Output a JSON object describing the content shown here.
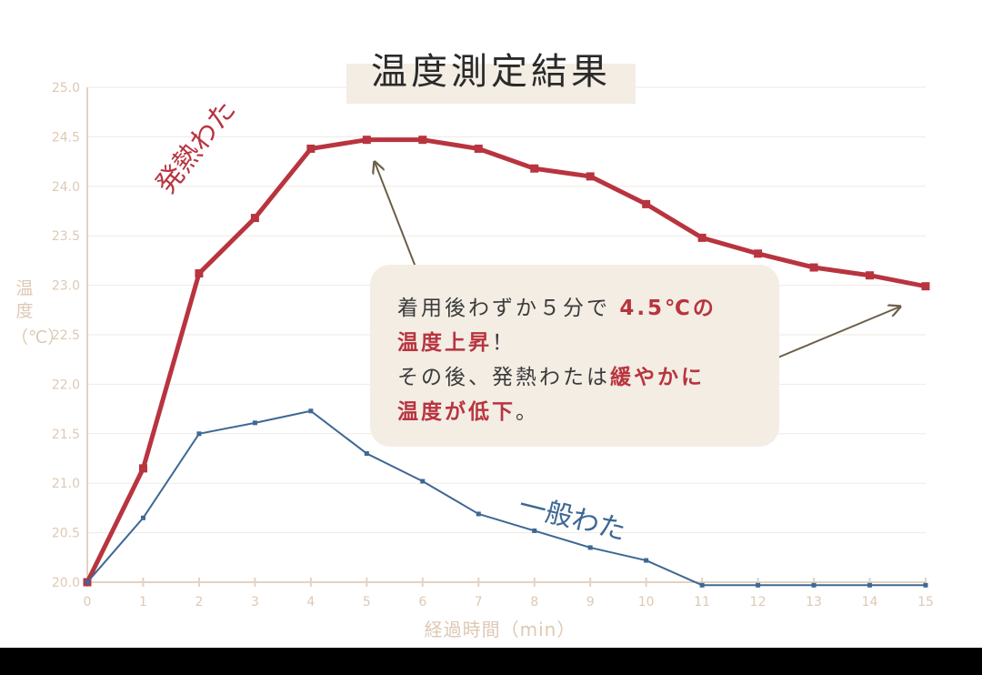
{
  "title": "温度測定結果",
  "y_axis": {
    "label": "温度",
    "unit": "（℃）"
  },
  "x_axis": {
    "label": "経過時間（min）"
  },
  "annotation": {
    "line1a": "着用後わずか５分で ",
    "line1b": "4.5℃の",
    "line2a": "温度上昇",
    "line2b": "！",
    "line3a": "その後、発熱わたは",
    "line3b": "緩やかに",
    "line4a": "温度が低下",
    "line4b": "。"
  },
  "colors": {
    "series_a": "#b8343f",
    "series_b": "#3d6894",
    "axis": "#e3d2c2",
    "tick_text": "#ddc9b4",
    "grid": "#efe9e2",
    "callout_bg": "#f3ede4",
    "arrow": "#6b5f4a"
  },
  "chart_data": {
    "type": "line",
    "title": "温度測定結果",
    "xlabel": "経過時間（min）",
    "ylabel": "温度（℃）",
    "x": [
      0,
      1,
      2,
      3,
      4,
      5,
      6,
      7,
      8,
      9,
      10,
      11,
      12,
      13,
      14,
      15
    ],
    "xlim": [
      0,
      15
    ],
    "ylim": [
      20.0,
      25.0
    ],
    "y_ticks": [
      "20.0",
      "20.5",
      "21.0",
      "21.5",
      "22.0",
      "22.5",
      "23.0",
      "23.5",
      "24.0",
      "24.5",
      "25.0"
    ],
    "x_ticks": [
      "0",
      "1",
      "2",
      "3",
      "4",
      "5",
      "6",
      "7",
      "8",
      "9",
      "10",
      "11",
      "12",
      "13",
      "14",
      "15"
    ],
    "grid": true,
    "series": [
      {
        "name": "発熱わた",
        "values": [
          20.0,
          21.15,
          23.12,
          23.68,
          24.38,
          24.47,
          24.47,
          24.38,
          24.18,
          24.1,
          23.82,
          23.48,
          23.32,
          23.18,
          23.1,
          22.99
        ]
      },
      {
        "name": "一般わた",
        "values": [
          20.0,
          20.65,
          21.5,
          21.61,
          21.73,
          21.3,
          21.02,
          20.69,
          20.52,
          20.35,
          20.22,
          19.97,
          19.97,
          19.97,
          19.97,
          19.97
        ]
      }
    ]
  }
}
